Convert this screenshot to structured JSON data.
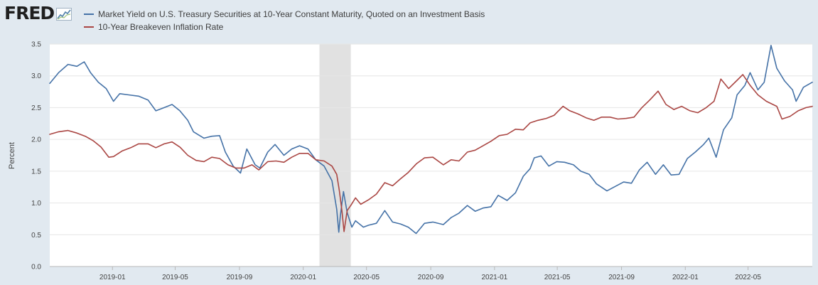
{
  "header": {
    "logo_text": "FRED",
    "logo_icon": "chart-line-icon"
  },
  "colors": {
    "page_bg": "#e1e9f0",
    "plot_bg": "#ffffff",
    "grid": "#e6e6e6",
    "recession": "#e1e1e1",
    "series_treasury": "#4572a7",
    "series_breakeven": "#aa4643"
  },
  "chart_data": {
    "type": "line",
    "title": "",
    "xlabel": "",
    "ylabel": "Percent",
    "ylim": [
      0,
      3.5
    ],
    "xlim": [
      "2018-09-03",
      "2022-09-01"
    ],
    "grid": true,
    "legend_position": "top",
    "y_ticks": [
      "0.0",
      "0.5",
      "1.0",
      "1.5",
      "2.0",
      "2.5",
      "3.0",
      "3.5"
    ],
    "x_ticks": [
      {
        "date": "2019-01-01",
        "label": "2019-01"
      },
      {
        "date": "2019-05-01",
        "label": "2019-05"
      },
      {
        "date": "2019-09-01",
        "label": "2019-09"
      },
      {
        "date": "2020-01-01",
        "label": "2020-01"
      },
      {
        "date": "2020-05-01",
        "label": "2020-05"
      },
      {
        "date": "2020-09-01",
        "label": "2020-09"
      },
      {
        "date": "2021-01-01",
        "label": "2021-01"
      },
      {
        "date": "2021-05-01",
        "label": "2021-05"
      },
      {
        "date": "2021-09-01",
        "label": "2021-09"
      },
      {
        "date": "2022-01-01",
        "label": "2022-01"
      },
      {
        "date": "2022-05-01",
        "label": "2022-05"
      }
    ],
    "shaded_periods": [
      {
        "start": "2020-02-01",
        "end": "2020-04-01",
        "label": "recession"
      }
    ],
    "series": [
      {
        "name": "Market Yield on U.S. Treasury Securities at 10-Year Constant Maturity, Quoted on an Investment Basis",
        "color": "#4572a7",
        "points": [
          [
            "2018-09-03",
            2.88
          ],
          [
            "2018-09-20",
            3.05
          ],
          [
            "2018-10-08",
            3.18
          ],
          [
            "2018-10-25",
            3.15
          ],
          [
            "2018-11-08",
            3.22
          ],
          [
            "2018-11-20",
            3.05
          ],
          [
            "2018-12-05",
            2.9
          ],
          [
            "2018-12-20",
            2.8
          ],
          [
            "2019-01-03",
            2.6
          ],
          [
            "2019-01-15",
            2.72
          ],
          [
            "2019-02-01",
            2.7
          ],
          [
            "2019-02-20",
            2.68
          ],
          [
            "2019-03-10",
            2.62
          ],
          [
            "2019-03-25",
            2.45
          ],
          [
            "2019-04-10",
            2.5
          ],
          [
            "2019-04-25",
            2.55
          ],
          [
            "2019-05-10",
            2.45
          ],
          [
            "2019-05-25",
            2.3
          ],
          [
            "2019-06-05",
            2.12
          ],
          [
            "2019-06-25",
            2.02
          ],
          [
            "2019-07-10",
            2.05
          ],
          [
            "2019-07-25",
            2.06
          ],
          [
            "2019-08-05",
            1.8
          ],
          [
            "2019-08-20",
            1.58
          ],
          [
            "2019-09-03",
            1.47
          ],
          [
            "2019-09-15",
            1.85
          ],
          [
            "2019-10-01",
            1.6
          ],
          [
            "2019-10-10",
            1.55
          ],
          [
            "2019-10-25",
            1.8
          ],
          [
            "2019-11-08",
            1.92
          ],
          [
            "2019-11-25",
            1.75
          ],
          [
            "2019-12-10",
            1.85
          ],
          [
            "2019-12-25",
            1.9
          ],
          [
            "2020-01-10",
            1.85
          ],
          [
            "2020-01-25",
            1.68
          ],
          [
            "2020-02-10",
            1.58
          ],
          [
            "2020-02-25",
            1.35
          ],
          [
            "2020-03-05",
            0.9
          ],
          [
            "2020-03-09",
            0.54
          ],
          [
            "2020-03-12",
            0.8
          ],
          [
            "2020-03-18",
            1.18
          ],
          [
            "2020-03-25",
            0.85
          ],
          [
            "2020-04-03",
            0.62
          ],
          [
            "2020-04-10",
            0.72
          ],
          [
            "2020-04-25",
            0.62
          ],
          [
            "2020-05-05",
            0.65
          ],
          [
            "2020-05-20",
            0.68
          ],
          [
            "2020-06-05",
            0.88
          ],
          [
            "2020-06-20",
            0.7
          ],
          [
            "2020-07-05",
            0.67
          ],
          [
            "2020-07-20",
            0.62
          ],
          [
            "2020-08-04",
            0.52
          ],
          [
            "2020-08-20",
            0.68
          ],
          [
            "2020-09-05",
            0.7
          ],
          [
            "2020-09-25",
            0.66
          ],
          [
            "2020-10-10",
            0.77
          ],
          [
            "2020-10-25",
            0.84
          ],
          [
            "2020-11-10",
            0.96
          ],
          [
            "2020-11-25",
            0.87
          ],
          [
            "2020-12-10",
            0.92
          ],
          [
            "2020-12-25",
            0.94
          ],
          [
            "2021-01-08",
            1.12
          ],
          [
            "2021-01-25",
            1.04
          ],
          [
            "2021-02-10",
            1.16
          ],
          [
            "2021-02-25",
            1.42
          ],
          [
            "2021-03-10",
            1.54
          ],
          [
            "2021-03-18",
            1.71
          ],
          [
            "2021-03-31",
            1.74
          ],
          [
            "2021-04-15",
            1.58
          ],
          [
            "2021-04-30",
            1.65
          ],
          [
            "2021-05-15",
            1.64
          ],
          [
            "2021-06-01",
            1.6
          ],
          [
            "2021-06-15",
            1.5
          ],
          [
            "2021-07-01",
            1.45
          ],
          [
            "2021-07-15",
            1.3
          ],
          [
            "2021-08-04",
            1.19
          ],
          [
            "2021-08-20",
            1.26
          ],
          [
            "2021-09-05",
            1.33
          ],
          [
            "2021-09-20",
            1.31
          ],
          [
            "2021-10-05",
            1.52
          ],
          [
            "2021-10-20",
            1.64
          ],
          [
            "2021-11-05",
            1.45
          ],
          [
            "2021-11-20",
            1.6
          ],
          [
            "2021-12-05",
            1.44
          ],
          [
            "2021-12-20",
            1.45
          ],
          [
            "2022-01-05",
            1.7
          ],
          [
            "2022-01-20",
            1.8
          ],
          [
            "2022-02-05",
            1.92
          ],
          [
            "2022-02-15",
            2.02
          ],
          [
            "2022-03-01",
            1.72
          ],
          [
            "2022-03-15",
            2.15
          ],
          [
            "2022-03-31",
            2.34
          ],
          [
            "2022-04-10",
            2.7
          ],
          [
            "2022-04-25",
            2.85
          ],
          [
            "2022-05-05",
            3.05
          ],
          [
            "2022-05-20",
            2.78
          ],
          [
            "2022-06-01",
            2.9
          ],
          [
            "2022-06-14",
            3.48
          ],
          [
            "2022-06-25",
            3.12
          ],
          [
            "2022-07-10",
            2.92
          ],
          [
            "2022-07-25",
            2.78
          ],
          [
            "2022-08-01",
            2.6
          ],
          [
            "2022-08-15",
            2.82
          ],
          [
            "2022-09-01",
            2.9
          ]
        ]
      },
      {
        "name": "10-Year Breakeven Inflation Rate",
        "color": "#aa4643",
        "points": [
          [
            "2018-09-03",
            2.08
          ],
          [
            "2018-09-20",
            2.12
          ],
          [
            "2018-10-08",
            2.14
          ],
          [
            "2018-10-25",
            2.1
          ],
          [
            "2018-11-10",
            2.05
          ],
          [
            "2018-11-25",
            1.98
          ],
          [
            "2018-12-10",
            1.88
          ],
          [
            "2018-12-25",
            1.72
          ],
          [
            "2019-01-03",
            1.73
          ],
          [
            "2019-01-20",
            1.82
          ],
          [
            "2019-02-05",
            1.87
          ],
          [
            "2019-02-20",
            1.93
          ],
          [
            "2019-03-10",
            1.93
          ],
          [
            "2019-03-25",
            1.87
          ],
          [
            "2019-04-10",
            1.93
          ],
          [
            "2019-04-25",
            1.96
          ],
          [
            "2019-05-10",
            1.88
          ],
          [
            "2019-05-25",
            1.75
          ],
          [
            "2019-06-10",
            1.67
          ],
          [
            "2019-06-25",
            1.65
          ],
          [
            "2019-07-10",
            1.72
          ],
          [
            "2019-07-25",
            1.7
          ],
          [
            "2019-08-10",
            1.6
          ],
          [
            "2019-08-25",
            1.55
          ],
          [
            "2019-09-10",
            1.55
          ],
          [
            "2019-09-25",
            1.6
          ],
          [
            "2019-10-08",
            1.52
          ],
          [
            "2019-10-25",
            1.65
          ],
          [
            "2019-11-10",
            1.66
          ],
          [
            "2019-11-25",
            1.64
          ],
          [
            "2019-12-10",
            1.72
          ],
          [
            "2019-12-25",
            1.78
          ],
          [
            "2020-01-10",
            1.78
          ],
          [
            "2020-01-25",
            1.68
          ],
          [
            "2020-02-10",
            1.66
          ],
          [
            "2020-02-25",
            1.58
          ],
          [
            "2020-03-05",
            1.45
          ],
          [
            "2020-03-10",
            1.2
          ],
          [
            "2020-03-15",
            0.88
          ],
          [
            "2020-03-19",
            0.55
          ],
          [
            "2020-03-25",
            0.88
          ],
          [
            "2020-04-01",
            0.96
          ],
          [
            "2020-04-10",
            1.08
          ],
          [
            "2020-04-20",
            0.98
          ],
          [
            "2020-05-05",
            1.05
          ],
          [
            "2020-05-20",
            1.14
          ],
          [
            "2020-06-05",
            1.32
          ],
          [
            "2020-06-20",
            1.27
          ],
          [
            "2020-07-05",
            1.38
          ],
          [
            "2020-07-20",
            1.48
          ],
          [
            "2020-08-05",
            1.62
          ],
          [
            "2020-08-20",
            1.71
          ],
          [
            "2020-09-05",
            1.72
          ],
          [
            "2020-09-25",
            1.6
          ],
          [
            "2020-10-10",
            1.68
          ],
          [
            "2020-10-25",
            1.66
          ],
          [
            "2020-11-10",
            1.8
          ],
          [
            "2020-11-25",
            1.83
          ],
          [
            "2020-12-10",
            1.9
          ],
          [
            "2020-12-25",
            1.97
          ],
          [
            "2021-01-10",
            2.06
          ],
          [
            "2021-01-25",
            2.08
          ],
          [
            "2021-02-10",
            2.16
          ],
          [
            "2021-02-25",
            2.15
          ],
          [
            "2021-03-10",
            2.26
          ],
          [
            "2021-03-25",
            2.3
          ],
          [
            "2021-04-10",
            2.33
          ],
          [
            "2021-04-25",
            2.38
          ],
          [
            "2021-05-12",
            2.52
          ],
          [
            "2021-05-25",
            2.45
          ],
          [
            "2021-06-10",
            2.4
          ],
          [
            "2021-06-25",
            2.34
          ],
          [
            "2021-07-10",
            2.3
          ],
          [
            "2021-07-25",
            2.35
          ],
          [
            "2021-08-10",
            2.35
          ],
          [
            "2021-08-25",
            2.32
          ],
          [
            "2021-09-10",
            2.33
          ],
          [
            "2021-09-25",
            2.35
          ],
          [
            "2021-10-10",
            2.5
          ],
          [
            "2021-10-25",
            2.62
          ],
          [
            "2021-11-10",
            2.76
          ],
          [
            "2021-11-25",
            2.55
          ],
          [
            "2021-12-10",
            2.47
          ],
          [
            "2021-12-25",
            2.52
          ],
          [
            "2022-01-10",
            2.45
          ],
          [
            "2022-01-25",
            2.42
          ],
          [
            "2022-02-10",
            2.5
          ],
          [
            "2022-02-25",
            2.6
          ],
          [
            "2022-03-10",
            2.95
          ],
          [
            "2022-03-25",
            2.8
          ],
          [
            "2022-04-10",
            2.93
          ],
          [
            "2022-04-21",
            3.02
          ],
          [
            "2022-05-05",
            2.85
          ],
          [
            "2022-05-20",
            2.7
          ],
          [
            "2022-06-05",
            2.6
          ],
          [
            "2022-06-25",
            2.52
          ],
          [
            "2022-07-05",
            2.32
          ],
          [
            "2022-07-20",
            2.36
          ],
          [
            "2022-08-05",
            2.45
          ],
          [
            "2022-08-20",
            2.5
          ],
          [
            "2022-09-01",
            2.52
          ]
        ]
      }
    ]
  }
}
